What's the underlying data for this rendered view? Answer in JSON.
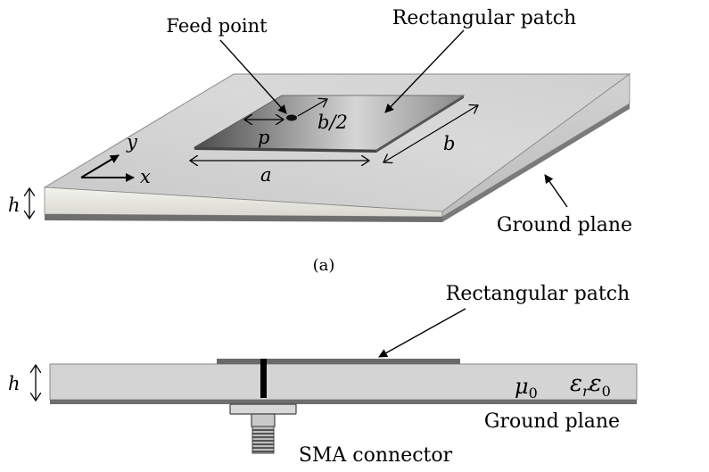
{
  "figure_a": {
    "feed_point_label": "Feed point",
    "patch_label": "Rectangular patch",
    "dim_p": "p",
    "dim_half_b": "b/2",
    "dim_b": "b",
    "dim_a": "a",
    "axis_y": "y",
    "axis_x": "x",
    "height_label": "h",
    "ground_label": "Ground plane",
    "caption": "(a)"
  },
  "figure_b": {
    "patch_label": "Rectangular patch",
    "height_label": "h",
    "mu_symbol": "μ",
    "mu_sub": "0",
    "eps_symbol": "ε",
    "eps_sub_r": "r",
    "eps_symbol2": "ε",
    "eps_sub_0": "0",
    "ground_label": "Ground plane",
    "connector_label": "SMA connector"
  },
  "colors": {
    "substrate_top": "#d6d6d6",
    "substrate_front": "#e8e8e0",
    "ground": "#6e6e6e",
    "patch_dark": "#5a5a5a",
    "patch_light": "#d0d0d0"
  }
}
